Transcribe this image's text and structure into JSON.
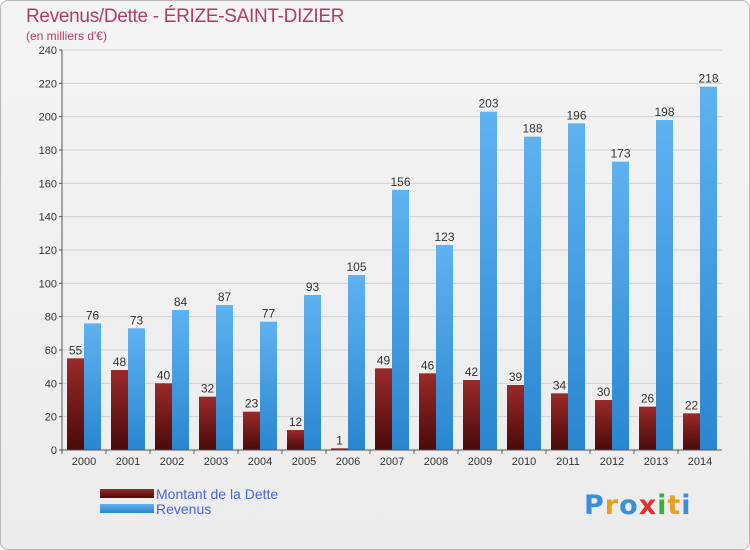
{
  "title": "Revenus/Dette - ÉRIZE-SAINT-DIZIER",
  "subtitle": "(en milliers d'€)",
  "colors": {
    "dette": "#7a1a1a",
    "revenus": "#4aa3e8",
    "title": "#b03a6a",
    "legend_text": "#4a63d6"
  },
  "logo": {
    "text": "Proxiti",
    "icon": "proxiti-logo"
  },
  "chart_data": {
    "type": "bar",
    "title": "Revenus/Dette - ÉRIZE-SAINT-DIZIER",
    "subtitle": "(en milliers d'€)",
    "xlabel": "",
    "ylabel": "",
    "ylim": [
      0,
      240
    ],
    "yticks": [
      0,
      20,
      40,
      60,
      80,
      100,
      120,
      140,
      160,
      180,
      200,
      220,
      240
    ],
    "grid": true,
    "legend_position": "bottom-left",
    "categories": [
      "2000",
      "2001",
      "2002",
      "2003",
      "2004",
      "2005",
      "2006",
      "2007",
      "2008",
      "2009",
      "2010",
      "2011",
      "2012",
      "2013",
      "2014"
    ],
    "series": [
      {
        "name": "Montant de la Dette",
        "color": "#7a1a1a",
        "values": [
          55,
          48,
          40,
          32,
          23,
          12,
          1,
          49,
          46,
          42,
          39,
          34,
          30,
          26,
          22
        ]
      },
      {
        "name": "Revenus",
        "color": "#4aa3e8",
        "values": [
          76,
          73,
          84,
          87,
          77,
          93,
          105,
          156,
          123,
          203,
          188,
          196,
          173,
          198,
          218
        ]
      }
    ]
  }
}
